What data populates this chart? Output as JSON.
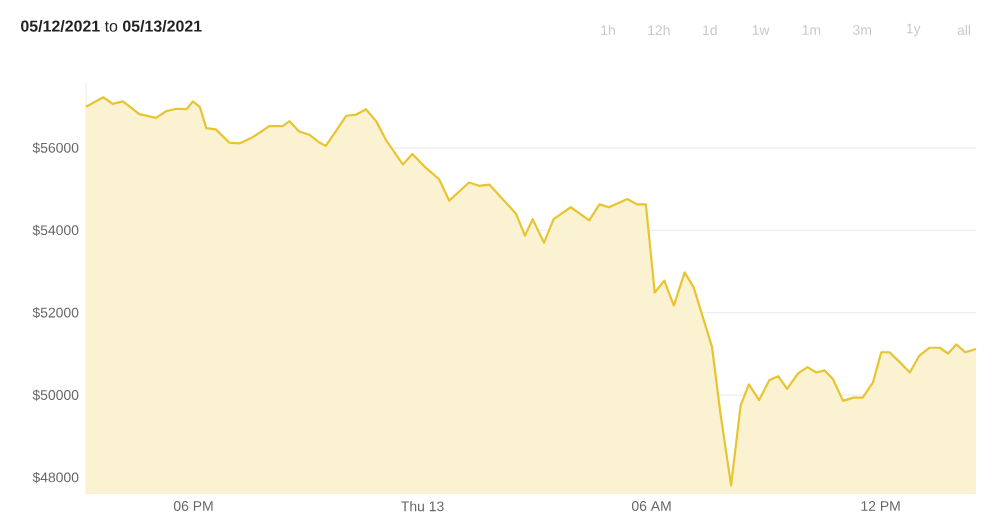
{
  "chart_data": {
    "type": "area",
    "title": "**05/12/2021** to **05/13/2021**",
    "annotations": [
      "1h",
      "12h",
      "1d",
      "1w",
      "1m",
      "3m",
      "1y",
      "all"
    ],
    "x": [
      "2021-05-12T15:11",
      "2021-05-12T15:38",
      "2021-05-12T15:53",
      "2021-05-12T16:09",
      "2021-05-12T16:35",
      "2021-05-12T17:01",
      "2021-05-12T17:17",
      "2021-05-12T17:33",
      "2021-05-12T17:49",
      "2021-05-12T17:59",
      "2021-05-12T18:10",
      "2021-05-12T18:20",
      "2021-05-12T18:35",
      "2021-05-12T18:56",
      "2021-05-12T19:12",
      "2021-05-12T19:33",
      "2021-05-12T19:59",
      "2021-05-12T20:20",
      "2021-05-12T20:31",
      "2021-05-12T20:46",
      "2021-05-12T21:02",
      "2021-05-12T21:18",
      "2021-05-12T21:28",
      "2021-05-12T22:00",
      "2021-05-12T22:16",
      "2021-05-12T22:31",
      "2021-05-12T22:47",
      "2021-05-12T23:03",
      "2021-05-12T23:29",
      "2021-05-12T23:44",
      "2021-05-13T00:05",
      "2021-05-13T00:26",
      "2021-05-13T00:42",
      "2021-05-13T00:58",
      "2021-05-13T01:13",
      "2021-05-13T01:29",
      "2021-05-13T01:45",
      "2021-05-13T02:01",
      "2021-05-13T02:27",
      "2021-05-13T02:41",
      "2021-05-13T02:53",
      "2021-05-13T03:11",
      "2021-05-13T03:26",
      "2021-05-13T03:53",
      "2021-05-13T04:22",
      "2021-05-13T04:38",
      "2021-05-13T04:53",
      "2021-05-13T05:22",
      "2021-05-13T05:37",
      "2021-05-13T05:51",
      "2021-05-13T06:05",
      "2021-05-13T06:20",
      "2021-05-13T06:35",
      "2021-05-13T06:52",
      "2021-05-13T07:06",
      "2021-05-13T07:35",
      "2021-05-13T07:48",
      "2021-05-13T08:05",
      "2021-05-13T08:20",
      "2021-05-13T08:33",
      "2021-05-13T08:49",
      "2021-05-13T09:05",
      "2021-05-13T09:19",
      "2021-05-13T09:33",
      "2021-05-13T09:50",
      "2021-05-13T10:05",
      "2021-05-13T10:19",
      "2021-05-13T10:32",
      "2021-05-13T10:45",
      "2021-05-13T11:01",
      "2021-05-13T11:17",
      "2021-05-13T11:32",
      "2021-05-13T11:48",
      "2021-05-13T12:01",
      "2021-05-13T12:14",
      "2021-05-13T12:30",
      "2021-05-13T12:46",
      "2021-05-13T13:01",
      "2021-05-13T13:17",
      "2021-05-13T13:33",
      "2021-05-13T13:46",
      "2021-05-13T13:59",
      "2021-05-13T14:13",
      "2021-05-13T14:30"
    ],
    "series": [
      {
        "color": "#e8c430",
        "values": [
          57000,
          57230,
          57070,
          57130,
          56820,
          56730,
          56890,
          56950,
          56940,
          57130,
          56990,
          56480,
          56450,
          56130,
          56110,
          56260,
          56530,
          56530,
          56650,
          56400,
          56320,
          56130,
          56050,
          56780,
          56810,
          56940,
          56650,
          56180,
          55600,
          55850,
          55520,
          55240,
          54720,
          54950,
          55160,
          55080,
          55110,
          54840,
          54400,
          53870,
          54270,
          53700,
          54270,
          54560,
          54240,
          54630,
          54560,
          54760,
          54630,
          54630,
          52490,
          52780,
          52170,
          52980,
          52620,
          51170,
          49580,
          47810,
          49750,
          50260,
          49880,
          50360,
          50460,
          50150,
          50520,
          50680,
          50550,
          50600,
          50390,
          49860,
          49940,
          49940,
          50310,
          51040,
          51040,
          50800,
          50550,
          50960,
          51150,
          51150,
          51010,
          51230,
          51040,
          51120
        ]
      }
    ],
    "xlim": [
      "2021-05-12T15:11",
      "2021-05-13T14:30"
    ],
    "ylim": [
      47600,
      57600
    ],
    "xticks": [
      {
        "value": "2021-05-12T18:00",
        "label": "06 PM"
      },
      {
        "value": "2021-05-13T00:00",
        "label": "Thu 13"
      },
      {
        "value": "2021-05-13T06:00",
        "label": "06 AM"
      },
      {
        "value": "2021-05-13T12:00",
        "label": "12 PM"
      }
    ],
    "yticks": [
      {
        "value": 48000,
        "label": "$48000"
      },
      {
        "value": 50000,
        "label": "$50000"
      },
      {
        "value": 52000,
        "label": "$52000"
      },
      {
        "value": 54000,
        "label": "$54000"
      },
      {
        "value": 56000,
        "label": "$56000"
      }
    ],
    "grid": "y",
    "marker": "none",
    "line_style": "solid"
  }
}
